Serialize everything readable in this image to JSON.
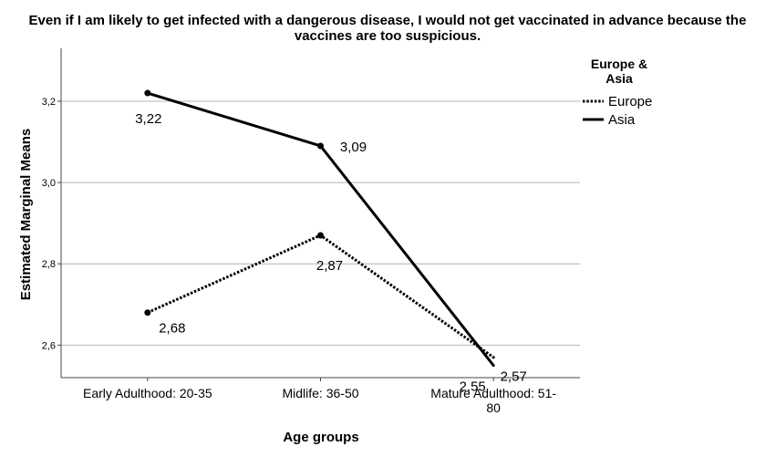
{
  "chart_data": {
    "type": "line",
    "title_line1": "Even if I am likely to get infected with a dangerous disease, I would not get vaccinated in advance because the",
    "title_line2": "vaccines are too suspicious.",
    "xlabel": "Age groups",
    "ylabel": "Estimated Marginal Means",
    "categories": [
      [
        "Early Adulthood: 20-35"
      ],
      [
        "Midlife:  36-50"
      ],
      [
        "Mature Adulthood: 51-",
        "80"
      ]
    ],
    "ylim": [
      2.52,
      3.33
    ],
    "yticks": [
      {
        "value": 2.6,
        "label": "2,6"
      },
      {
        "value": 2.8,
        "label": "2,8"
      },
      {
        "value": 3.0,
        "label": "3,0"
      },
      {
        "value": 3.2,
        "label": "3,2"
      }
    ],
    "grid": true,
    "legend": {
      "title_line1": "Europe &",
      "title_line2": "Asia",
      "placement": "top-right"
    },
    "series": [
      {
        "name": "Europe",
        "style": "dotted",
        "values": [
          2.68,
          2.87,
          2.57
        ],
        "labels": [
          "2,68",
          "2,87",
          "2,57"
        ]
      },
      {
        "name": "Asia",
        "style": "solid",
        "values": [
          3.22,
          3.09,
          2.55
        ],
        "labels": [
          "3,22",
          "3,09",
          "2,55"
        ]
      }
    ],
    "colors": {
      "line": "#000000",
      "grid": "#b4b4b4",
      "axis": "#444444"
    }
  }
}
